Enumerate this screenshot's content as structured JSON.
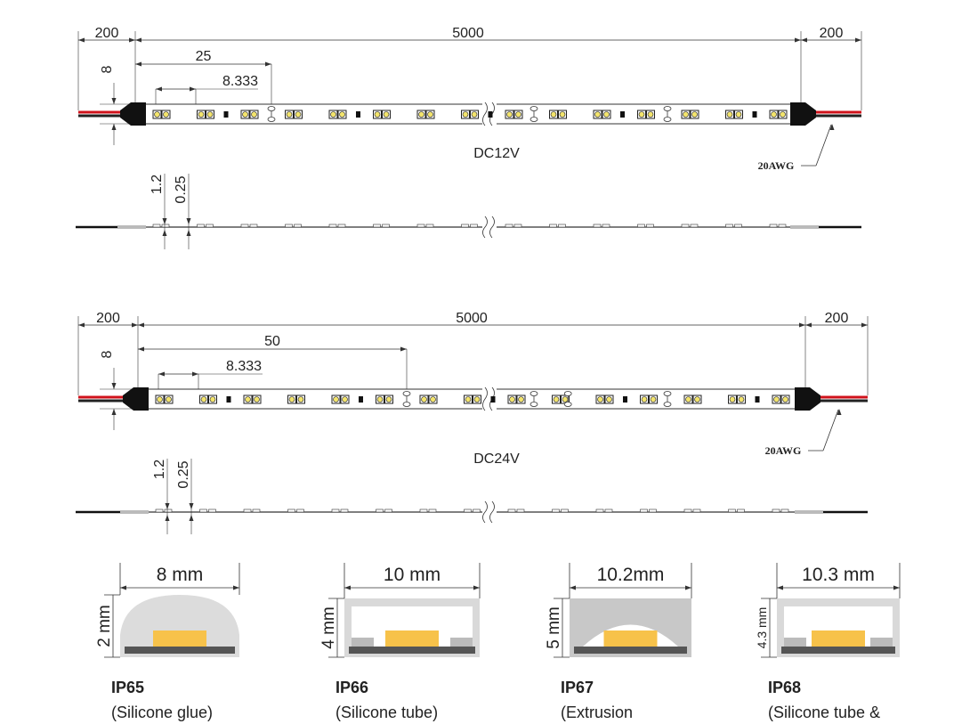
{
  "strips": [
    {
      "left_lead": "200",
      "length": "5000",
      "right_lead": "200",
      "cut_unit": "25",
      "pitch": "8.333",
      "width": "8",
      "voltage": "DC12V",
      "wire": "20AWG",
      "thickness": "1.2",
      "chip_gap": "0.25"
    },
    {
      "left_lead": "200",
      "length": "5000",
      "right_lead": "200",
      "cut_unit": "50",
      "pitch": "8.333",
      "width": "8",
      "voltage": "DC24V",
      "wire": "20AWG",
      "thickness": "1.2",
      "chip_gap": "0.25"
    }
  ],
  "profiles": [
    {
      "width": "8 mm",
      "height": "2 mm",
      "ip": "IP65",
      "description": "(Silicone glue)"
    },
    {
      "width": "10 mm",
      "height": "4 mm",
      "ip": "IP66",
      "description": "(Silicone tube)"
    },
    {
      "width": "10.2mm",
      "height": "5 mm",
      "ip": "IP67",
      "description": "(Extrusion"
    },
    {
      "width": "10.3 mm",
      "height": "4.3 mm",
      "ip": "IP68",
      "description": "(Silicone tube &"
    }
  ]
}
